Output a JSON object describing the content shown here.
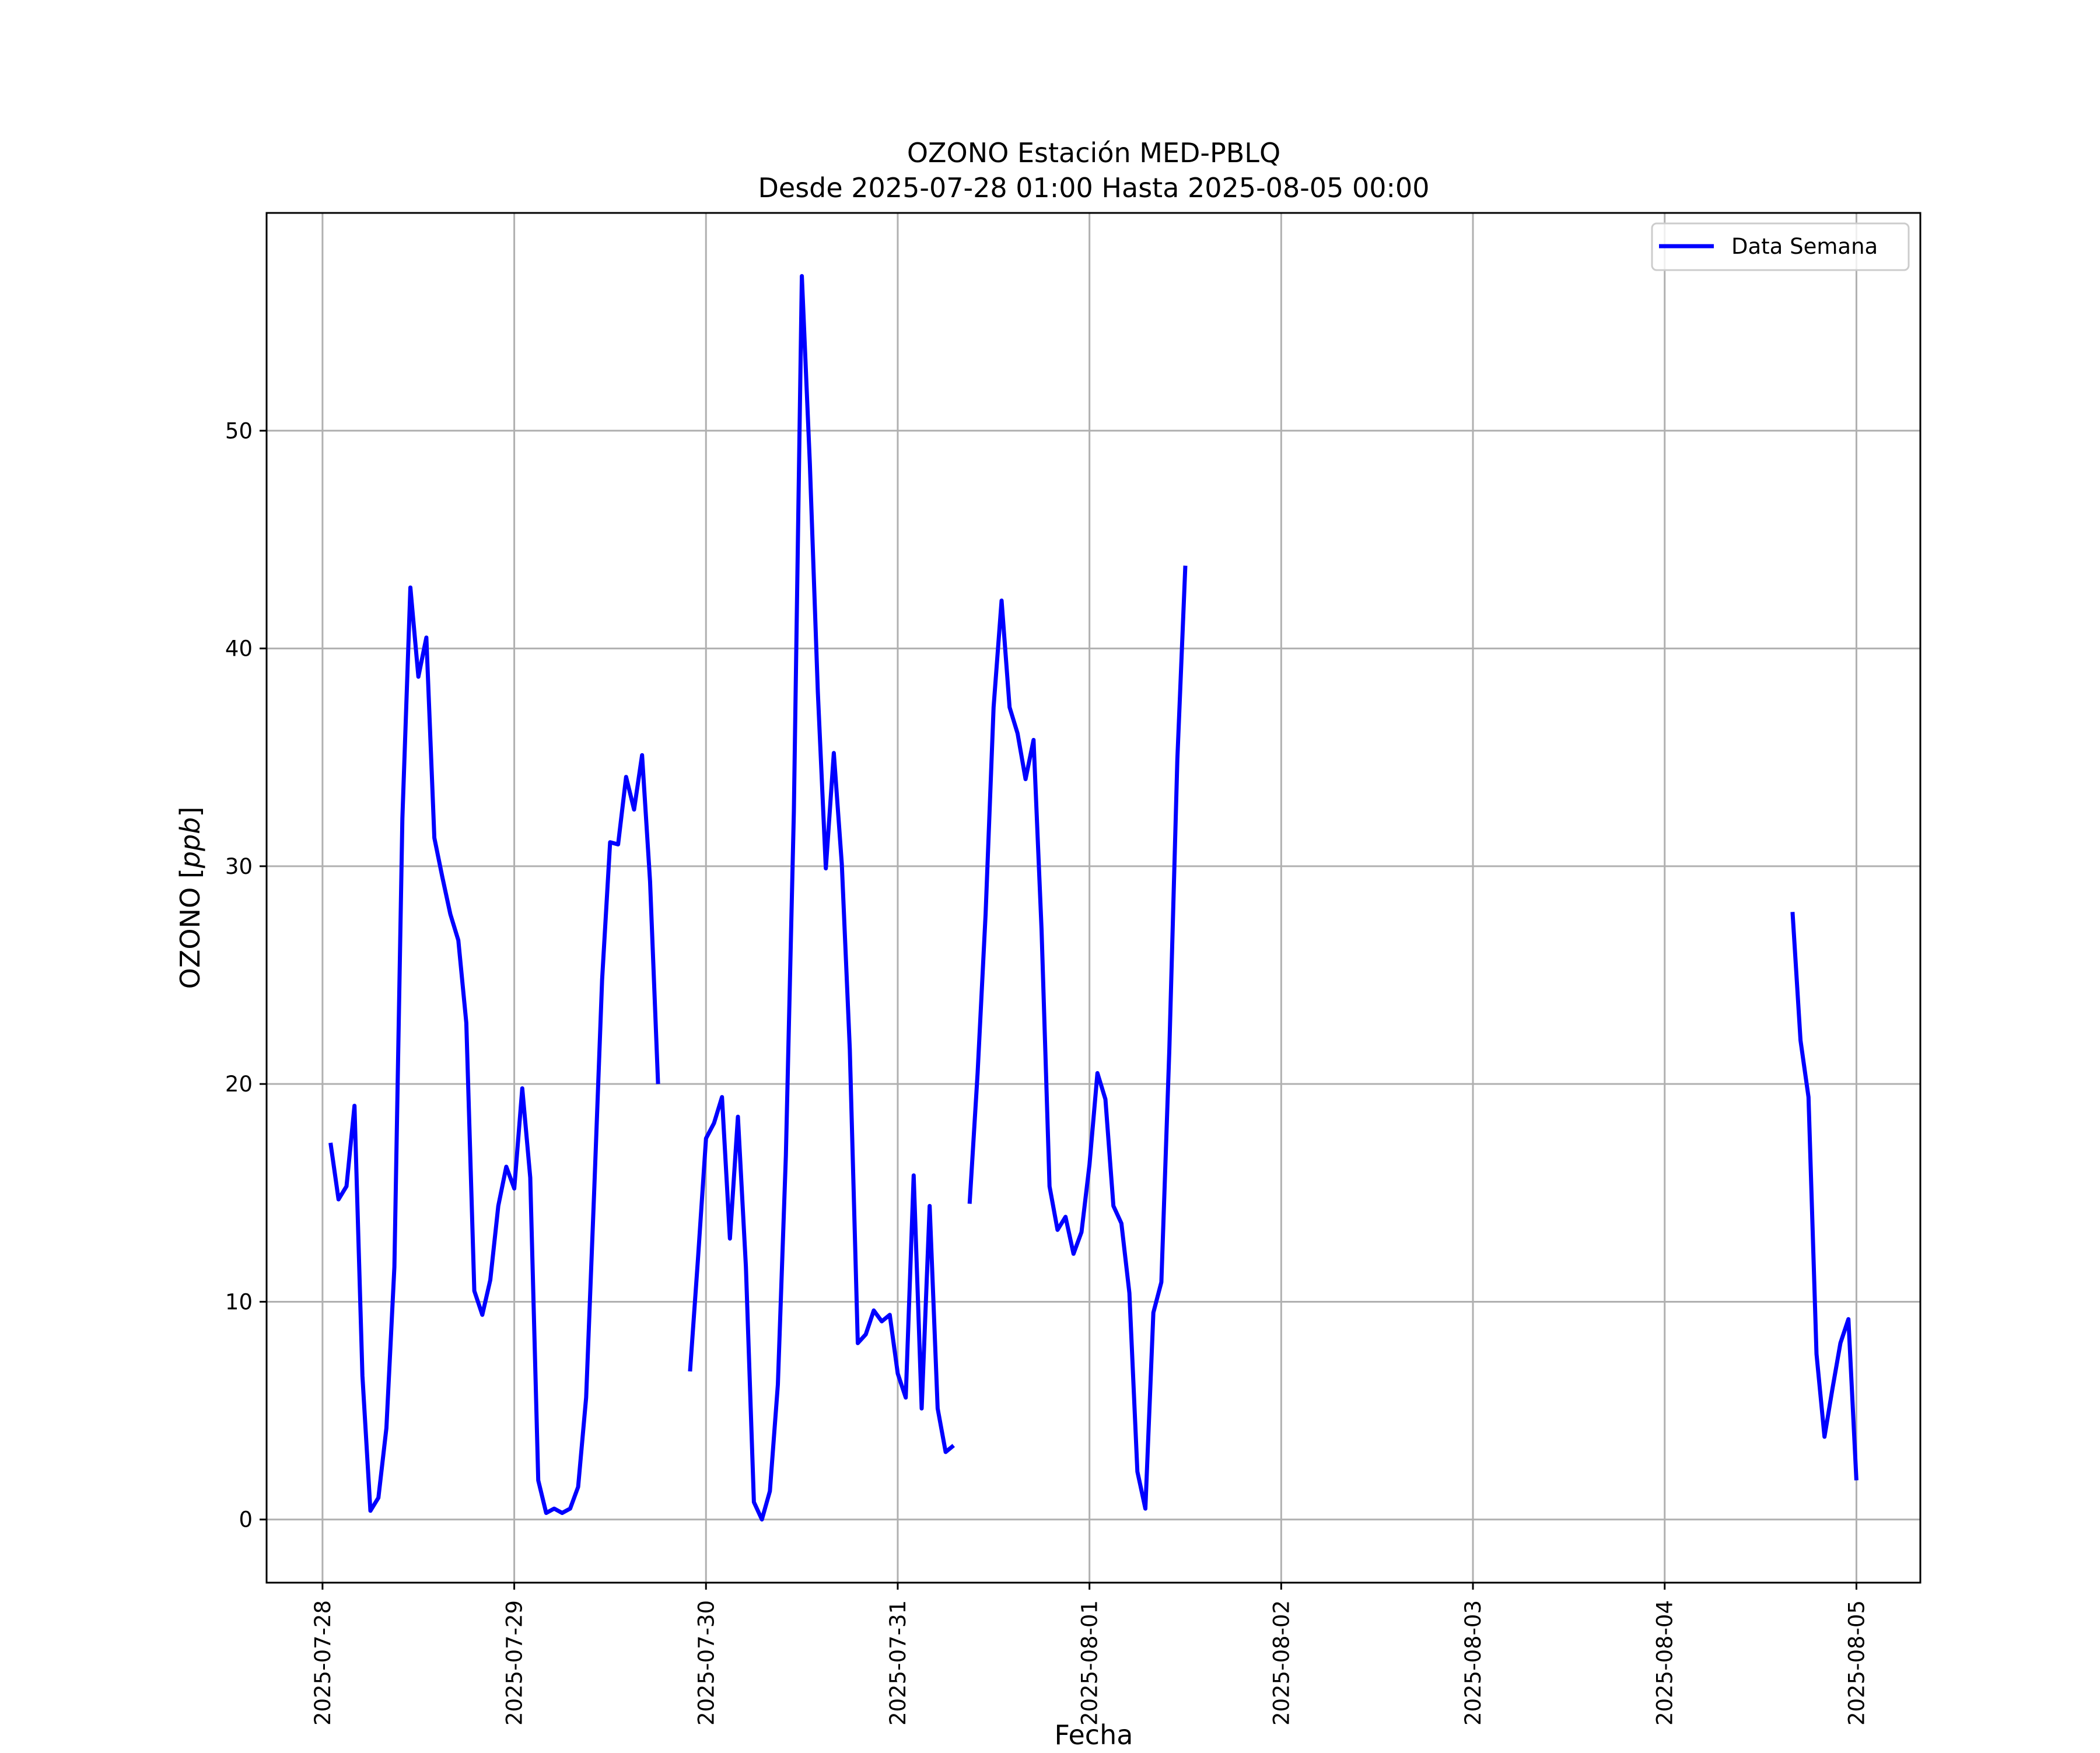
{
  "chart_data": {
    "type": "line",
    "title": "OZONO Estación MED-PBLQ",
    "subtitle": "Desde 2025-07-28 01:00 Hasta 2025-08-05 00:00",
    "xlabel": "Fecha",
    "ylabel_prefix": "OZONO [",
    "ylabel_unit": "ppb",
    "ylabel_suffix": "]",
    "xlim": [
      "2025-07-27 17:00",
      "2025-08-05 08:00"
    ],
    "ylim": [
      -2.9,
      60.0
    ],
    "x_ticks": [
      "2025-07-28",
      "2025-07-29",
      "2025-07-30",
      "2025-07-31",
      "2025-08-01",
      "2025-08-02",
      "2025-08-03",
      "2025-08-04",
      "2025-08-05"
    ],
    "y_ticks": [
      0,
      10,
      20,
      30,
      40,
      50
    ],
    "grid": true,
    "legend_position": "upper-right",
    "colors": {
      "series": "#0000ff",
      "grid": "#b0b0b0",
      "frame": "#000000"
    },
    "series": [
      {
        "name": "Data Semana",
        "points": [
          [
            "2025-07-28 01:00",
            17.3
          ],
          [
            "2025-07-28 02:00",
            14.7
          ],
          [
            "2025-07-28 03:00",
            15.3
          ],
          [
            "2025-07-28 04:00",
            19.0
          ],
          [
            "2025-07-28 05:00",
            6.6
          ],
          [
            "2025-07-28 06:00",
            0.4
          ],
          [
            "2025-07-28 07:00",
            1.0
          ],
          [
            "2025-07-28 08:00",
            4.2
          ],
          [
            "2025-07-28 09:00",
            11.6
          ],
          [
            "2025-07-28 10:00",
            32.2
          ],
          [
            "2025-07-28 11:00",
            42.8
          ],
          [
            "2025-07-28 12:00",
            38.7
          ],
          [
            "2025-07-28 13:00",
            40.5
          ],
          [
            "2025-07-28 14:00",
            31.3
          ],
          [
            "2025-07-28 15:00",
            29.5
          ],
          [
            "2025-07-28 16:00",
            27.8
          ],
          [
            "2025-07-28 17:00",
            26.6
          ],
          [
            "2025-07-28 18:00",
            22.8
          ],
          [
            "2025-07-28 19:00",
            10.5
          ],
          [
            "2025-07-28 20:00",
            9.4
          ],
          [
            "2025-07-28 21:00",
            11.0
          ],
          [
            "2025-07-28 22:00",
            14.4
          ],
          [
            "2025-07-28 23:00",
            16.2
          ],
          [
            "2025-07-29 00:00",
            15.2
          ],
          [
            "2025-07-29 01:00",
            19.8
          ],
          [
            "2025-07-29 02:00",
            15.7
          ],
          [
            "2025-07-29 03:00",
            1.8
          ],
          [
            "2025-07-29 04:00",
            0.3
          ],
          [
            "2025-07-29 05:00",
            0.5
          ],
          [
            "2025-07-29 06:00",
            0.3
          ],
          [
            "2025-07-29 07:00",
            0.5
          ],
          [
            "2025-07-29 08:00",
            1.5
          ],
          [
            "2025-07-29 09:00",
            5.6
          ],
          [
            "2025-07-29 10:00",
            15.0
          ],
          [
            "2025-07-29 11:00",
            24.8
          ],
          [
            "2025-07-29 12:00",
            31.1
          ],
          [
            "2025-07-29 13:00",
            31.0
          ],
          [
            "2025-07-29 14:00",
            34.1
          ],
          [
            "2025-07-29 15:00",
            32.6
          ],
          [
            "2025-07-29 16:00",
            35.1
          ],
          [
            "2025-07-29 17:00",
            29.3
          ],
          [
            "2025-07-29 18:00",
            20.0
          ],
          [
            "2025-07-29 19:00",
            null
          ],
          [
            "2025-07-29 20:00",
            null
          ],
          [
            "2025-07-29 21:00",
            null
          ],
          [
            "2025-07-29 22:00",
            6.8
          ],
          [
            "2025-07-29 23:00",
            12.0
          ],
          [
            "2025-07-30 00:00",
            17.5
          ],
          [
            "2025-07-30 01:00",
            18.2
          ],
          [
            "2025-07-30 02:00",
            19.4
          ],
          [
            "2025-07-30 03:00",
            12.9
          ],
          [
            "2025-07-30 04:00",
            18.5
          ],
          [
            "2025-07-30 05:00",
            11.6
          ],
          [
            "2025-07-30 06:00",
            0.8
          ],
          [
            "2025-07-30 07:00",
            0.0
          ],
          [
            "2025-07-30 08:00",
            1.3
          ],
          [
            "2025-07-30 09:00",
            6.2
          ],
          [
            "2025-07-30 10:00",
            16.7
          ],
          [
            "2025-07-30 11:00",
            32.5
          ],
          [
            "2025-07-30 12:00",
            57.1
          ],
          [
            "2025-07-30 13:00",
            48.5
          ],
          [
            "2025-07-30 14:00",
            38.0
          ],
          [
            "2025-07-30 15:00",
            29.9
          ],
          [
            "2025-07-30 16:00",
            35.2
          ],
          [
            "2025-07-30 17:00",
            30.1
          ],
          [
            "2025-07-30 18:00",
            21.6
          ],
          [
            "2025-07-30 19:00",
            8.1
          ],
          [
            "2025-07-30 20:00",
            8.5
          ],
          [
            "2025-07-30 21:00",
            9.6
          ],
          [
            "2025-07-30 22:00",
            9.1
          ],
          [
            "2025-07-30 23:00",
            9.4
          ],
          [
            "2025-07-31 00:00",
            6.7
          ],
          [
            "2025-07-31 01:00",
            5.6
          ],
          [
            "2025-07-31 02:00",
            15.8
          ],
          [
            "2025-07-31 03:00",
            5.1
          ],
          [
            "2025-07-31 04:00",
            14.4
          ],
          [
            "2025-07-31 05:00",
            5.1
          ],
          [
            "2025-07-31 06:00",
            3.1
          ],
          [
            "2025-07-31 07:00",
            3.4
          ],
          [
            "2025-07-31 08:00",
            null
          ],
          [
            "2025-07-31 09:00",
            14.5
          ],
          [
            "2025-07-31 10:00",
            20.5
          ],
          [
            "2025-07-31 11:00",
            27.8
          ],
          [
            "2025-07-31 12:00",
            37.3
          ],
          [
            "2025-07-31 13:00",
            42.2
          ],
          [
            "2025-07-31 14:00",
            37.3
          ],
          [
            "2025-07-31 15:00",
            36.1
          ],
          [
            "2025-07-31 16:00",
            34.0
          ],
          [
            "2025-07-31 17:00",
            35.8
          ],
          [
            "2025-07-31 18:00",
            27.1
          ],
          [
            "2025-07-31 19:00",
            15.3
          ],
          [
            "2025-07-31 20:00",
            13.3
          ],
          [
            "2025-07-31 21:00",
            13.9
          ],
          [
            "2025-07-31 22:00",
            12.2
          ],
          [
            "2025-07-31 23:00",
            13.2
          ],
          [
            "2025-08-01 00:00",
            16.3
          ],
          [
            "2025-08-01 01:00",
            20.5
          ],
          [
            "2025-08-01 02:00",
            19.3
          ],
          [
            "2025-08-01 03:00",
            14.4
          ],
          [
            "2025-08-01 04:00",
            13.6
          ],
          [
            "2025-08-01 05:00",
            10.4
          ],
          [
            "2025-08-01 06:00",
            2.2
          ],
          [
            "2025-08-01 07:00",
            0.5
          ],
          [
            "2025-08-01 08:00",
            9.5
          ],
          [
            "2025-08-01 09:00",
            10.9
          ],
          [
            "2025-08-01 10:00",
            21.6
          ],
          [
            "2025-08-01 11:00",
            34.9
          ],
          [
            "2025-08-01 12:00",
            43.8
          ],
          [
            "2025-08-01 13:00",
            null
          ],
          [
            "2025-08-04 15:00",
            null
          ],
          [
            "2025-08-04 16:00",
            27.9
          ],
          [
            "2025-08-04 17:00",
            22.0
          ],
          [
            "2025-08-04 18:00",
            19.4
          ],
          [
            "2025-08-04 19:00",
            7.6
          ],
          [
            "2025-08-04 20:00",
            3.8
          ],
          [
            "2025-08-04 21:00",
            6.0
          ],
          [
            "2025-08-04 22:00",
            8.1
          ],
          [
            "2025-08-04 23:00",
            9.2
          ],
          [
            "2025-08-05 00:00",
            1.8
          ]
        ]
      }
    ]
  }
}
